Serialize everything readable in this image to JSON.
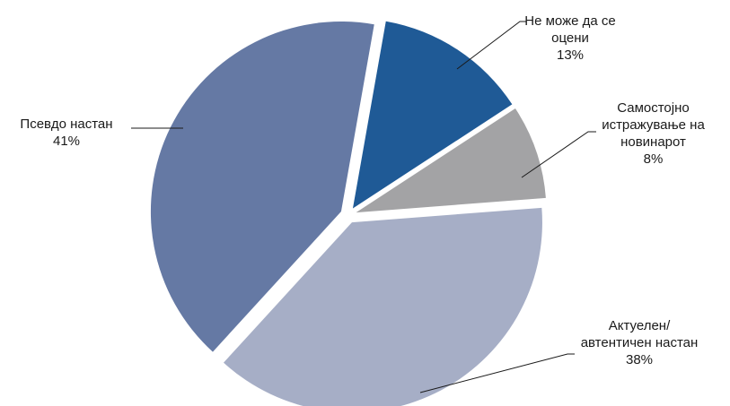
{
  "chart_data": {
    "type": "pie",
    "title": "",
    "unit": "%",
    "slices": [
      {
        "label": "Не може да се оцени",
        "label_lines": [
          "Не може да се",
          "оцени"
        ],
        "value": 13,
        "value_label": "13%",
        "color": "#1f5a96"
      },
      {
        "label": "Самостојно истражување на новинарот",
        "label_lines": [
          "Самостојно",
          "истражување на",
          "новинарот"
        ],
        "value": 8,
        "value_label": "8%",
        "color": "#a3a3a5"
      },
      {
        "label": "Актуелен/ автентичен настан",
        "label_lines": [
          "Актуелен/",
          "автентичен настан"
        ],
        "value": 38,
        "value_label": "38%",
        "color": "#a6aec6"
      },
      {
        "label": "Псевдо настан",
        "label_lines": [
          "Псевдо настан"
        ],
        "value": 41,
        "value_label": "41%",
        "color": "#6579a4"
      }
    ]
  }
}
